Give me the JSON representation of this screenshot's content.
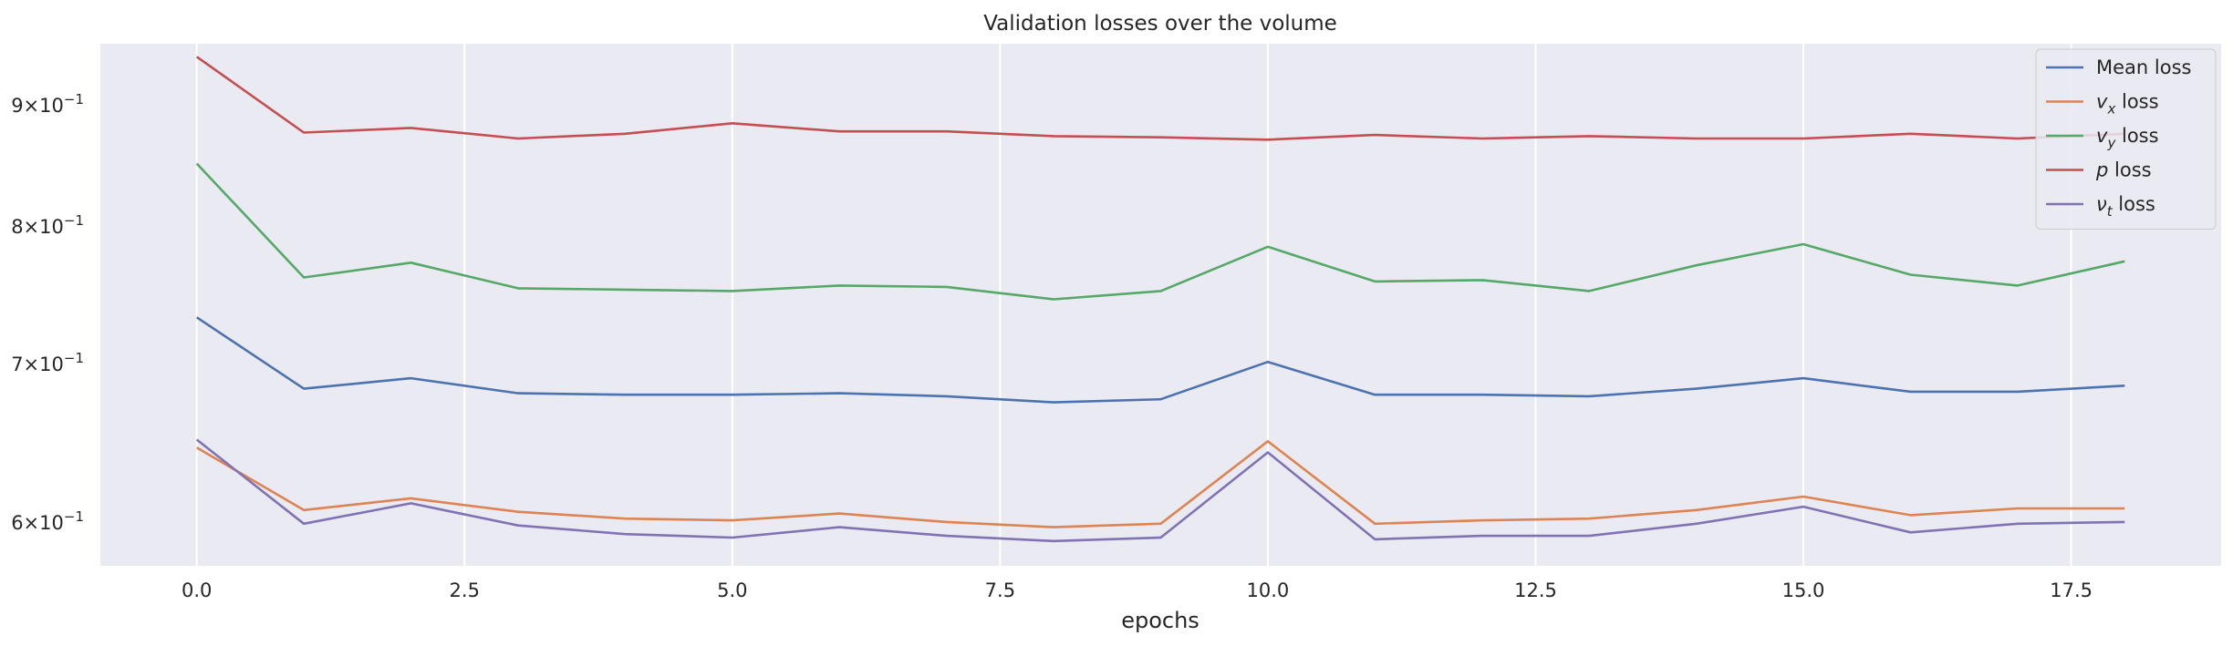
{
  "chart_data": {
    "type": "line",
    "title": "Validation losses over the volume",
    "xlabel": "epochs",
    "ylabel": "",
    "yscale": "log",
    "xlim": [
      -0.9,
      18.9
    ],
    "ylim": [
      0.575,
      0.955
    ],
    "grid": true,
    "legend_position": "top-right",
    "x": [
      0,
      1,
      2,
      3,
      4,
      5,
      6,
      7,
      8,
      9,
      10,
      11,
      12,
      13,
      14,
      15,
      16,
      17,
      18
    ],
    "x_ticks": [
      0.0,
      2.5,
      5.0,
      7.5,
      10.0,
      12.5,
      15.0,
      17.5
    ],
    "x_tick_labels": [
      "0.0",
      "2.5",
      "5.0",
      "7.5",
      "10.0",
      "12.5",
      "15.0",
      "17.5"
    ],
    "y_ticks": [
      {
        "value": 0.9,
        "mantissa": "9",
        "exponent": "−1"
      },
      {
        "value": 0.8,
        "mantissa": "8",
        "exponent": "−1"
      },
      {
        "value": 0.7,
        "mantissa": "7",
        "exponent": "−1"
      },
      {
        "value": 0.6,
        "mantissa": "6",
        "exponent": "−1"
      }
    ],
    "series": [
      {
        "name": "Mean loss",
        "symbol": "",
        "sub": "",
        "suffix": "Mean loss",
        "color": "#4c72b0",
        "values": [
          0.732,
          0.683,
          0.69,
          0.68,
          0.679,
          0.679,
          0.68,
          0.678,
          0.674,
          0.676,
          0.701,
          0.679,
          0.679,
          0.678,
          0.683,
          0.69,
          0.681,
          0.681,
          0.685
        ]
      },
      {
        "name": "v_x loss",
        "symbol": "v",
        "sub": "x",
        "suffix": " loss",
        "color": "#dd8452",
        "values": [
          0.645,
          0.607,
          0.614,
          0.606,
          0.602,
          0.601,
          0.605,
          0.6,
          0.597,
          0.599,
          0.649,
          0.599,
          0.601,
          0.602,
          0.607,
          0.615,
          0.604,
          0.608,
          0.608
        ]
      },
      {
        "name": "v_y loss",
        "symbol": "v",
        "sub": "y",
        "suffix": " loss",
        "color": "#55a868",
        "values": [
          0.85,
          0.761,
          0.772,
          0.753,
          0.752,
          0.751,
          0.755,
          0.754,
          0.745,
          0.751,
          0.784,
          0.758,
          0.759,
          0.751,
          0.77,
          0.786,
          0.763,
          0.755,
          0.773
        ]
      },
      {
        "name": "p loss",
        "symbol": "p",
        "sub": "",
        "suffix": " loss",
        "color": "#c44e52",
        "values": [
          0.943,
          0.876,
          0.88,
          0.871,
          0.875,
          0.884,
          0.877,
          0.877,
          0.873,
          0.872,
          0.87,
          0.874,
          0.871,
          0.873,
          0.871,
          0.871,
          0.875,
          0.871,
          0.875
        ]
      },
      {
        "name": "ν_t loss",
        "symbol": "ν",
        "sub": "t",
        "suffix": " loss",
        "color": "#8172b3",
        "values": [
          0.65,
          0.599,
          0.611,
          0.598,
          0.593,
          0.591,
          0.597,
          0.592,
          0.589,
          0.591,
          0.642,
          0.59,
          0.592,
          0.592,
          0.599,
          0.609,
          0.594,
          0.599,
          0.6
        ]
      }
    ]
  }
}
